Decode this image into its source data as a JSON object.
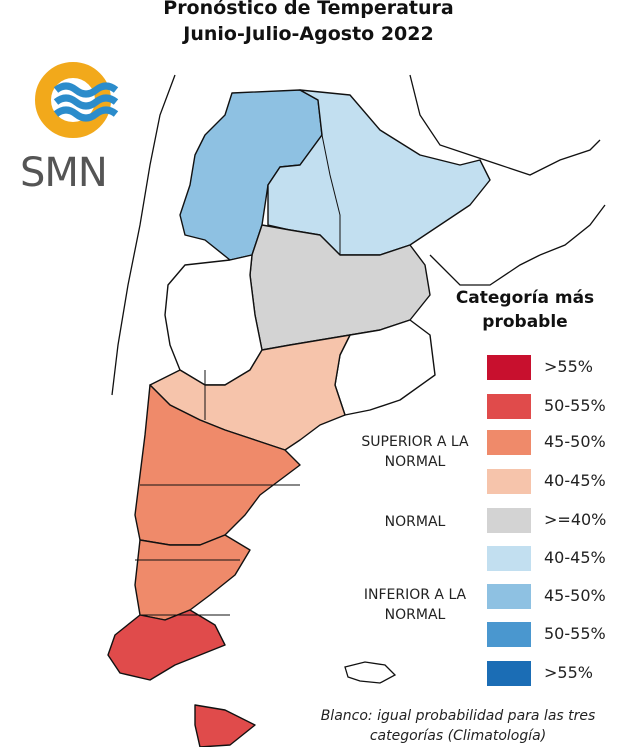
{
  "title": {
    "line1": "Pronóstico de Temperatura",
    "line2": "Junio-Julio-Agosto 2022"
  },
  "logo": {
    "text": "SMN",
    "colors": {
      "ring": "#f2a91b",
      "waves": "#2b8ccb"
    }
  },
  "legend": {
    "title": "Categoría más probable",
    "items": [
      {
        "label": ">55%",
        "color": "#c8102e"
      },
      {
        "label": "50-55%",
        "color": "#e04b4b"
      },
      {
        "label": "45-50%",
        "color": "#ef8a6a"
      },
      {
        "label": "40-45%",
        "color": "#f6c4ab"
      },
      {
        "label": ">=40%",
        "color": "#d3d3d3"
      },
      {
        "label": "40-45%",
        "color": "#c2dff0"
      },
      {
        "label": "45-50%",
        "color": "#8ec1e2"
      },
      {
        "label": "50-55%",
        "color": "#4a97cf"
      },
      {
        "label": ">55%",
        "color": "#1b6db5"
      }
    ],
    "categories": {
      "superior": "SUPERIOR A LA NORMAL",
      "normal": "NORMAL",
      "inferior": "INFERIOR A LA NORMAL"
    },
    "note": "Blanco: igual probabilidad para las tres categorías (Climatología)"
  }
}
